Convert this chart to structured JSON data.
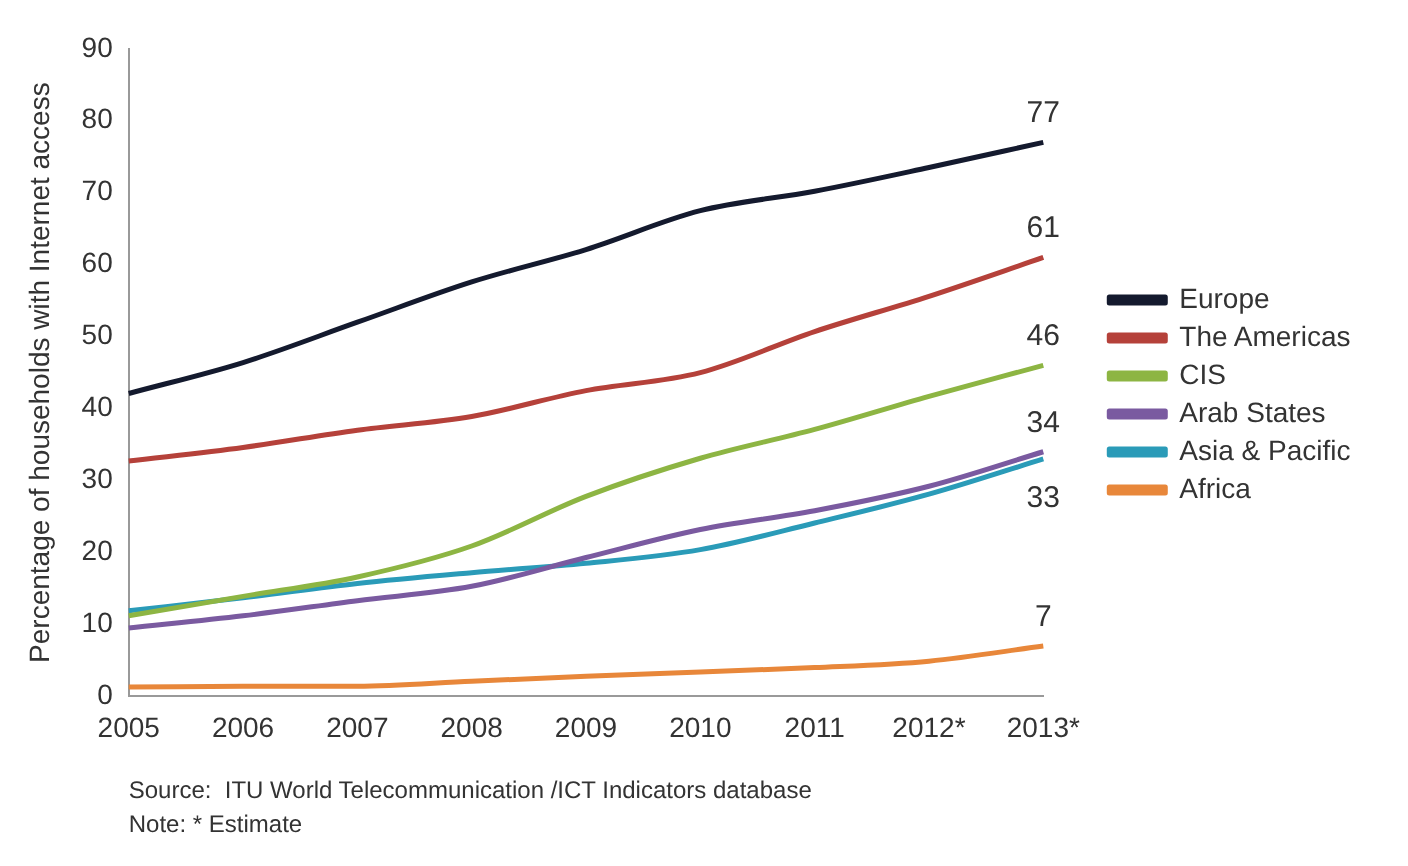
{
  "chart_data": {
    "type": "line",
    "ylabel": "Percentage of households with Internet access",
    "categories": [
      "2005",
      "2006",
      "2007",
      "2008",
      "2009",
      "2010",
      "2011",
      "2012*",
      "2013*"
    ],
    "series": [
      {
        "name": "Europe",
        "color": "#141a2e",
        "values": [
          42.1,
          46.4,
          52,
          57.6,
          62.1,
          67.5,
          70.2,
          73.5,
          77
        ],
        "value_labels": [
          null,
          null,
          null,
          null,
          null,
          null,
          null,
          null,
          "77"
        ]
      },
      {
        "name": "The Americas",
        "color": "#b5413a",
        "values": [
          32.7,
          34.6,
          37,
          38.9,
          42.5,
          45,
          50.7,
          55.6,
          61
        ],
        "value_labels": [
          null,
          null,
          null,
          null,
          null,
          null,
          null,
          null,
          "61"
        ]
      },
      {
        "name": "CIS",
        "color": "#8db543",
        "values": [
          11.2,
          13.9,
          16.6,
          20.9,
          27.8,
          33.1,
          37.1,
          41.7,
          46
        ],
        "value_labels": [
          null,
          null,
          null,
          null,
          null,
          null,
          null,
          null,
          "46"
        ]
      },
      {
        "name": "Arab States",
        "color": "#7a5aa0",
        "values": [
          9.5,
          11.2,
          13.3,
          15.3,
          19.3,
          23.2,
          25.8,
          29.2,
          34
        ],
        "value_labels": [
          null,
          null,
          null,
          null,
          null,
          null,
          null,
          null,
          "34"
        ]
      },
      {
        "name": "Asia & Pacific",
        "color": "#2a9bb8",
        "values": [
          11.9,
          13.7,
          15.7,
          17.2,
          18.5,
          20.4,
          24.1,
          28.1,
          33
        ],
        "value_labels": [
          null,
          null,
          null,
          null,
          null,
          null,
          null,
          null,
          "33"
        ]
      },
      {
        "name": "Africa",
        "color": "#e8873a",
        "values": [
          1.3,
          1.4,
          1.4,
          2.1,
          2.8,
          3.4,
          4.0,
          4.9,
          7
        ],
        "value_labels": [
          null,
          null,
          null,
          null,
          null,
          null,
          null,
          null,
          "7"
        ]
      }
    ],
    "ylim": [
      0,
      90
    ],
    "yticks": [
      0,
      10,
      20,
      30,
      40,
      50,
      60,
      70,
      80,
      90
    ],
    "grid": false,
    "legend": "right",
    "marker": "none",
    "line_style": "solid",
    "annotations": [
      "Source:  ITU World Telecommunication /ICT Indicators database",
      "Note: * Estimate"
    ]
  }
}
